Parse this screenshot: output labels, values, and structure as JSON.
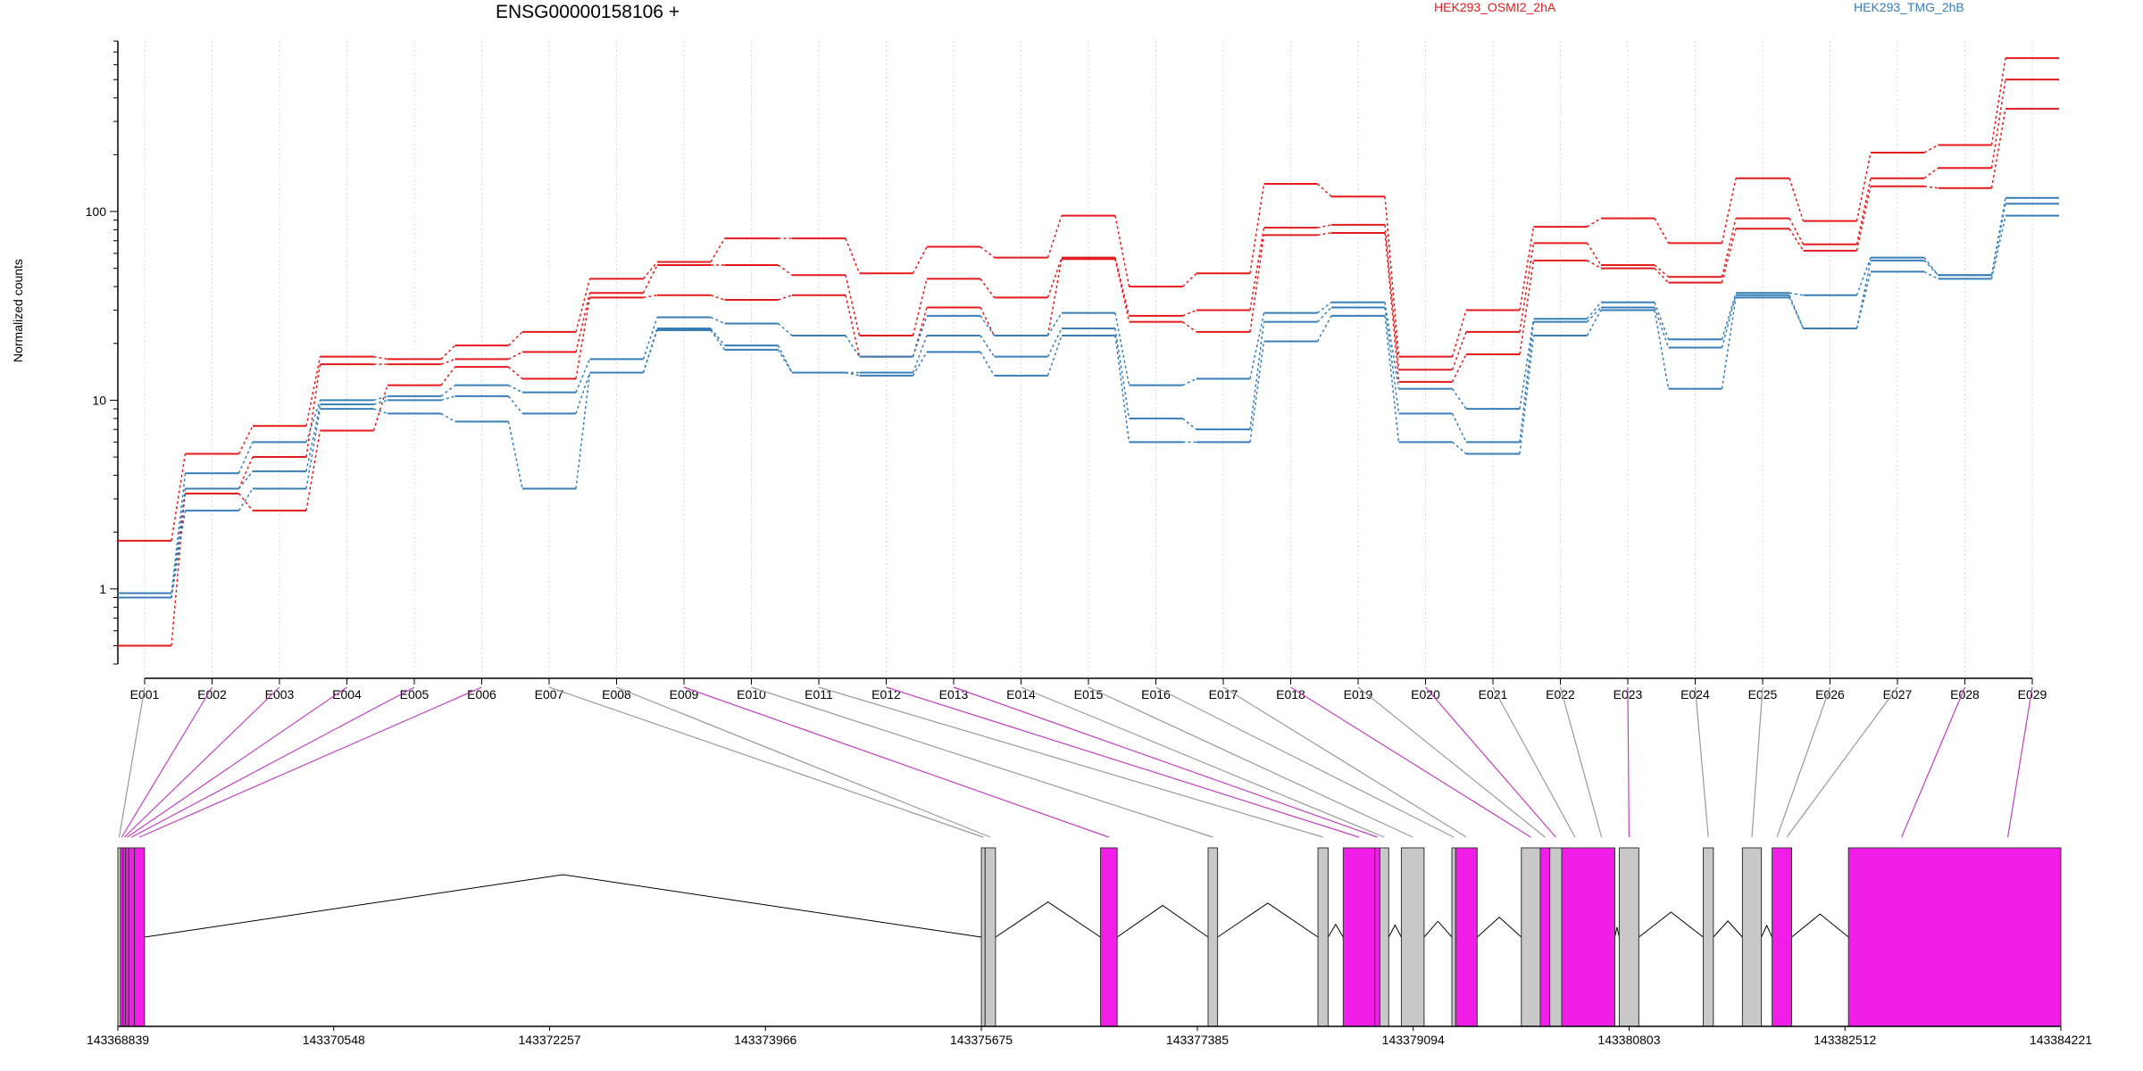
{
  "header": {
    "gene_title": "ENSG00000158106 +",
    "legend": [
      {
        "label": "HEK293_OSMI2_2hA",
        "color": "#e41a1c"
      },
      {
        "label": "HEK293_TMG_2hB",
        "color": "#377eb8"
      }
    ]
  },
  "chart_data": {
    "type": "line",
    "ylabel": "Normalized counts",
    "xlabel": "",
    "yscale": "log",
    "ylim": [
      0.4,
      800
    ],
    "yticks": [
      1,
      10,
      100
    ],
    "grid": "vertical dotted",
    "legend_position": "top",
    "categories": [
      "E001",
      "E002",
      "E003",
      "E004",
      "E005",
      "E006",
      "E007",
      "E008",
      "E009",
      "E010",
      "E011",
      "E012",
      "E013",
      "E014",
      "E015",
      "E016",
      "E017",
      "E018",
      "E019",
      "E020",
      "E021",
      "E022",
      "E023",
      "E024",
      "E025",
      "E026",
      "E027",
      "E028",
      "E029"
    ],
    "series": [
      {
        "group": "HEK293_OSMI2_2hA",
        "color": "#e41a1c",
        "values": [
          1.8,
          5.2,
          7.3,
          17,
          16.5,
          19.5,
          23,
          44,
          54,
          72,
          72,
          47,
          65,
          57,
          95,
          40,
          47,
          140,
          120,
          17,
          30,
          83,
          92,
          68,
          150,
          89,
          205,
          225,
          650
        ]
      },
      {
        "group": "HEK293_OSMI2_2hA",
        "color": "#e41a1c",
        "values": [
          0.5,
          3.4,
          5,
          15.5,
          15.5,
          16.5,
          18,
          37,
          52,
          52,
          46,
          22,
          44,
          35,
          57,
          28,
          30,
          82,
          85,
          14.5,
          23,
          68,
          52,
          45,
          92,
          67,
          150,
          170,
          500
        ]
      },
      {
        "group": "HEK293_OSMI2_2hA",
        "color": "#e41a1c",
        "values": [
          0.9,
          3.2,
          2.6,
          6.9,
          12,
          15,
          13,
          35,
          36,
          34,
          36,
          17,
          31,
          22,
          56,
          26,
          23,
          75,
          77,
          12.5,
          17.5,
          55,
          50,
          42,
          81,
          62,
          136,
          133,
          350
        ]
      },
      {
        "group": "HEK293_TMG_2hB",
        "color": "#377eb8",
        "values": [
          0.95,
          4.1,
          6,
          10,
          10.5,
          12,
          11,
          16.5,
          27.5,
          25.5,
          22,
          17,
          28,
          22,
          29,
          12,
          13,
          29,
          33,
          11.5,
          9,
          27,
          33,
          21,
          37,
          36,
          57,
          46,
          118
        ]
      },
      {
        "group": "HEK293_TMG_2hB",
        "color": "#377eb8",
        "values": [
          0.9,
          3.4,
          4.2,
          9.5,
          10,
          10.5,
          8.5,
          14,
          24,
          19.5,
          14,
          14,
          22,
          17,
          24,
          8,
          7,
          26,
          31,
          8.5,
          6,
          26,
          31,
          19,
          36,
          24,
          55,
          46,
          110
        ]
      },
      {
        "group": "HEK293_TMG_2hB",
        "color": "#377eb8",
        "values": [
          0.9,
          2.6,
          3.4,
          9,
          8.5,
          7.7,
          3.4,
          14,
          23.5,
          18.5,
          14,
          13.5,
          18,
          13.5,
          22,
          6,
          6,
          20.5,
          28,
          6,
          5.2,
          22,
          30,
          11.5,
          35,
          24,
          48,
          44,
          95
        ]
      }
    ]
  },
  "gene_model": {
    "coordinates": [
      "143368839",
      "143370548",
      "143372257",
      "143373966",
      "143375675",
      "143377385",
      "143379094",
      "143380803",
      "143382512",
      "143384221"
    ],
    "exon_colors": {
      "significant": "#f01ee6",
      "other": "#c8c8c8"
    },
    "exons": [
      {
        "id": "E001",
        "start": 143368839,
        "end": 143368860,
        "significant": false
      },
      {
        "id": "E002",
        "start": 143368860,
        "end": 143368880,
        "significant": true
      },
      {
        "id": "E003",
        "start": 143368880,
        "end": 143368900,
        "significant": true
      },
      {
        "id": "E004",
        "start": 143368900,
        "end": 143368925,
        "significant": true
      },
      {
        "id": "E005",
        "start": 143368925,
        "end": 143368970,
        "significant": true
      },
      {
        "id": "E006",
        "start": 143368970,
        "end": 143369050,
        "significant": true
      },
      {
        "id": "E007",
        "start": 143375675,
        "end": 143375705,
        "significant": false
      },
      {
        "id": "E008",
        "start": 143375705,
        "end": 143375787,
        "significant": false
      },
      {
        "id": "E009",
        "start": 143376618,
        "end": 143376750,
        "significant": true
      },
      {
        "id": "E010",
        "start": 143377470,
        "end": 143377545,
        "significant": false
      },
      {
        "id": "E011",
        "start": 143378340,
        "end": 143378420,
        "significant": false
      },
      {
        "id": "E012",
        "start": 143378540,
        "end": 143378790,
        "significant": true
      },
      {
        "id": "E013",
        "start": 143378790,
        "end": 143378830,
        "significant": true
      },
      {
        "id": "E014",
        "start": 143378830,
        "end": 143378900,
        "significant": false
      },
      {
        "id": "E015",
        "start": 143379000,
        "end": 143379180,
        "significant": false
      },
      {
        "id": "E016",
        "start": 143379400,
        "end": 143379430,
        "significant": false
      },
      {
        "id": "E017",
        "start": 143379430,
        "end": 143379600,
        "significant": true
      },
      {
        "id": "E018",
        "start": 143379950,
        "end": 143380100,
        "significant": false
      },
      {
        "id": "E019",
        "start": 143380100,
        "end": 143380175,
        "significant": true
      },
      {
        "id": "E020",
        "start": 143380175,
        "end": 143380270,
        "significant": false
      },
      {
        "id": "E021",
        "start": 143380270,
        "end": 143380690,
        "significant": true
      },
      {
        "id": "E022",
        "start": 143380725,
        "end": 143380880,
        "significant": false
      },
      {
        "id": "E023",
        "start": 143381390,
        "end": 143381470,
        "significant": false
      },
      {
        "id": "E024",
        "start": 143381700,
        "end": 143381850,
        "significant": false
      },
      {
        "id": "E025",
        "start": 143381935,
        "end": 143382090,
        "significant": true
      },
      {
        "id": "E026",
        "start": 143382540,
        "end": 143384221,
        "significant": true
      }
    ],
    "link_exons": [
      {
        "label": "E001",
        "significant": false
      },
      {
        "label": "E002",
        "significant": true
      },
      {
        "label": "E003",
        "significant": true
      },
      {
        "label": "E004",
        "significant": true
      },
      {
        "label": "E005",
        "significant": true
      },
      {
        "label": "E006",
        "significant": true
      },
      {
        "label": "E007",
        "significant": false
      },
      {
        "label": "E008",
        "significant": false
      },
      {
        "label": "E009",
        "significant": true
      },
      {
        "label": "E010",
        "significant": false
      },
      {
        "label": "E011",
        "significant": false
      },
      {
        "label": "E012",
        "significant": true
      },
      {
        "label": "E013",
        "significant": true
      },
      {
        "label": "E014",
        "significant": false
      },
      {
        "label": "E015",
        "significant": false
      },
      {
        "label": "E016",
        "significant": false
      },
      {
        "label": "E017",
        "significant": false
      },
      {
        "label": "E018",
        "significant": true
      },
      {
        "label": "E019",
        "significant": false
      },
      {
        "label": "E020",
        "significant": true
      },
      {
        "label": "E021",
        "significant": false
      },
      {
        "label": "E022",
        "significant": false
      },
      {
        "label": "E023",
        "significant": true
      },
      {
        "label": "E024",
        "significant": false
      },
      {
        "label": "E025",
        "significant": false
      },
      {
        "label": "E026",
        "significant": false
      },
      {
        "label": "E027",
        "significant": false
      },
      {
        "label": "E028",
        "significant": true
      },
      {
        "label": "E029",
        "significant": true
      }
    ]
  }
}
